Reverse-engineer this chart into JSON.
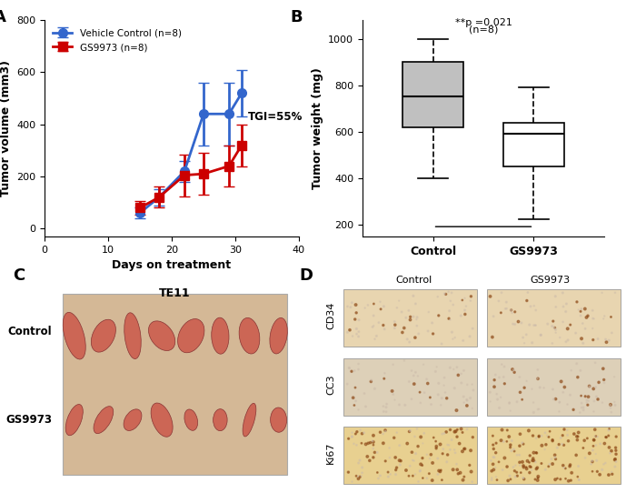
{
  "panel_A": {
    "label": "A",
    "control_x": [
      15,
      18,
      22,
      25,
      29,
      31
    ],
    "control_y": [
      60,
      120,
      220,
      440,
      440,
      520
    ],
    "control_yerr": [
      20,
      30,
      40,
      120,
      120,
      90
    ],
    "gs9973_x": [
      15,
      18,
      22,
      25,
      29,
      31
    ],
    "gs9973_y": [
      80,
      120,
      205,
      210,
      240,
      320
    ],
    "gs9973_yerr": [
      25,
      40,
      80,
      80,
      80,
      80
    ],
    "control_color": "#3366cc",
    "gs9973_color": "#cc0000",
    "control_label": "Vehicle Control (n=8)",
    "gs9973_label": "GS9973 (n=8)",
    "xlabel": "Days on treatment",
    "ylabel": "Tumor volume (mm3)",
    "ylim": [
      -30,
      800
    ],
    "xlim": [
      0,
      40
    ],
    "tgi_text": "TGI=55%",
    "xticks": [
      0,
      10,
      20,
      30,
      40
    ],
    "yticks": [
      0,
      200,
      400,
      600,
      800
    ]
  },
  "panel_B": {
    "label": "B",
    "control_box": {
      "median": 750,
      "q1": 620,
      "q3": 900,
      "whislo": 400,
      "whishi": 1000
    },
    "gs9973_box": {
      "median": 590,
      "q1": 450,
      "q3": 640,
      "whislo": 225,
      "whishi": 790
    },
    "control_color": "#c0c0c0",
    "gs9973_color": "#ffffff",
    "ylabel": "Tumor weight (mg)",
    "ylim": [
      150,
      1080
    ],
    "yticks": [
      200,
      400,
      600,
      800,
      1000
    ],
    "categories": [
      "Control",
      "GS9973"
    ],
    "pvalue_text": "**p =0.021",
    "n_text": "(n=8)"
  },
  "panel_C": {
    "label": "C",
    "title": "TE11",
    "control_label": "Control",
    "gs9973_label": "GS9973",
    "bg_color": "#d4b896"
  },
  "panel_D": {
    "label": "D",
    "rows": [
      "CD34",
      "CC3",
      "Ki67"
    ],
    "cols": [
      "Control",
      "GS9973"
    ],
    "ihc_colors": [
      "#e8d5b0",
      "#ddd0b8",
      "#e8d090"
    ],
    "dot_color": "#8B4513"
  }
}
